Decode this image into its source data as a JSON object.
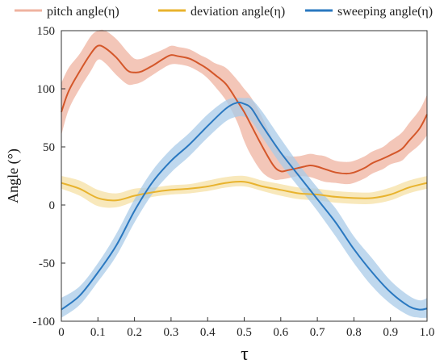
{
  "chart_data": {
    "type": "line",
    "xlabel": "τ",
    "ylabel": "Angle (°)",
    "xlim": [
      0,
      1.0
    ],
    "ylim": [
      -100,
      150
    ],
    "x_ticks": [
      "0",
      "0.1",
      "0.2",
      "0.3",
      "0.4",
      "0.5",
      "0.6",
      "0.7",
      "0.8",
      "0.9",
      "1.0"
    ],
    "y_ticks": [
      "150",
      "100",
      "50",
      "0",
      "-50",
      "-100"
    ],
    "legend_position": "top",
    "grid": false,
    "series": [
      {
        "name": "pitch angle(η)",
        "color": "#d4572a",
        "band_color": "#efb3a0",
        "x": [
          0,
          0.02,
          0.05,
          0.08,
          0.1,
          0.12,
          0.15,
          0.18,
          0.2,
          0.22,
          0.25,
          0.28,
          0.3,
          0.32,
          0.35,
          0.38,
          0.4,
          0.42,
          0.45,
          0.48,
          0.5,
          0.52,
          0.55,
          0.58,
          0.6,
          0.62,
          0.65,
          0.68,
          0.7,
          0.72,
          0.75,
          0.78,
          0.8,
          0.83,
          0.85,
          0.88,
          0.9,
          0.93,
          0.95,
          0.98,
          1.0
        ],
        "values": [
          80,
          98,
          115,
          130,
          137,
          135,
          127,
          116,
          114,
          115,
          120,
          126,
          129,
          128,
          126,
          121,
          117,
          112,
          104,
          90,
          80,
          68,
          50,
          34,
          29,
          30,
          32,
          34,
          33,
          31,
          28,
          27,
          28,
          32,
          36,
          40,
          43,
          48,
          55,
          66,
          78
        ],
        "lower": [
          60,
          82,
          100,
          115,
          125,
          122,
          112,
          104,
          104,
          106,
          112,
          118,
          121,
          121,
          119,
          114,
          109,
          102,
          90,
          72,
          55,
          42,
          28,
          22,
          22,
          23,
          25,
          24,
          22,
          20,
          19,
          18,
          19,
          23,
          27,
          31,
          35,
          38,
          44,
          52,
          60
        ],
        "upper": [
          105,
          118,
          130,
          145,
          150,
          150,
          143,
          132,
          126,
          126,
          130,
          134,
          137,
          136,
          134,
          129,
          126,
          122,
          118,
          108,
          100,
          92,
          75,
          55,
          45,
          42,
          42,
          44,
          43,
          42,
          38,
          37,
          38,
          42,
          46,
          50,
          55,
          62,
          70,
          82,
          95
        ]
      },
      {
        "name": "deviation angle(η)",
        "color": "#e8b32e",
        "band_color": "#f6e0a4",
        "x": [
          0,
          0.05,
          0.1,
          0.15,
          0.2,
          0.25,
          0.3,
          0.35,
          0.4,
          0.45,
          0.5,
          0.55,
          0.6,
          0.65,
          0.7,
          0.75,
          0.8,
          0.85,
          0.9,
          0.95,
          1.0
        ],
        "values": [
          19,
          14,
          6,
          4,
          8,
          11,
          13,
          14,
          16,
          19,
          20,
          16,
          13,
          10,
          9,
          7,
          6,
          6,
          9,
          15,
          19
        ],
        "lower": [
          14,
          8,
          -1,
          -2,
          3,
          7,
          9,
          10,
          12,
          15,
          16,
          12,
          8,
          5,
          4,
          2,
          1,
          1,
          4,
          10,
          14
        ],
        "upper": [
          25,
          21,
          13,
          10,
          14,
          15,
          17,
          18,
          21,
          24,
          25,
          21,
          18,
          15,
          14,
          12,
          11,
          11,
          15,
          21,
          25
        ]
      },
      {
        "name": "sweeping angle(η)",
        "color": "#2a78c0",
        "band_color": "#a9cbe8",
        "x": [
          0,
          0.05,
          0.1,
          0.15,
          0.2,
          0.25,
          0.3,
          0.35,
          0.4,
          0.45,
          0.48,
          0.5,
          0.52,
          0.55,
          0.6,
          0.65,
          0.7,
          0.75,
          0.8,
          0.85,
          0.9,
          0.95,
          0.98,
          1.0
        ],
        "values": [
          -90,
          -78,
          -58,
          -35,
          -5,
          20,
          38,
          52,
          68,
          83,
          88,
          87,
          83,
          68,
          45,
          25,
          5,
          -15,
          -38,
          -58,
          -75,
          -87,
          -90,
          -89
        ],
        "lower": [
          -97,
          -86,
          -66,
          -44,
          -15,
          10,
          28,
          42,
          58,
          72,
          76,
          76,
          72,
          58,
          35,
          15,
          -5,
          -27,
          -50,
          -70,
          -85,
          -95,
          -97,
          -97
        ],
        "upper": [
          -80,
          -70,
          -50,
          -25,
          5,
          30,
          48,
          62,
          78,
          90,
          92,
          92,
          91,
          80,
          57,
          35,
          15,
          -3,
          -27,
          -46,
          -65,
          -78,
          -82,
          -80
        ]
      }
    ]
  }
}
